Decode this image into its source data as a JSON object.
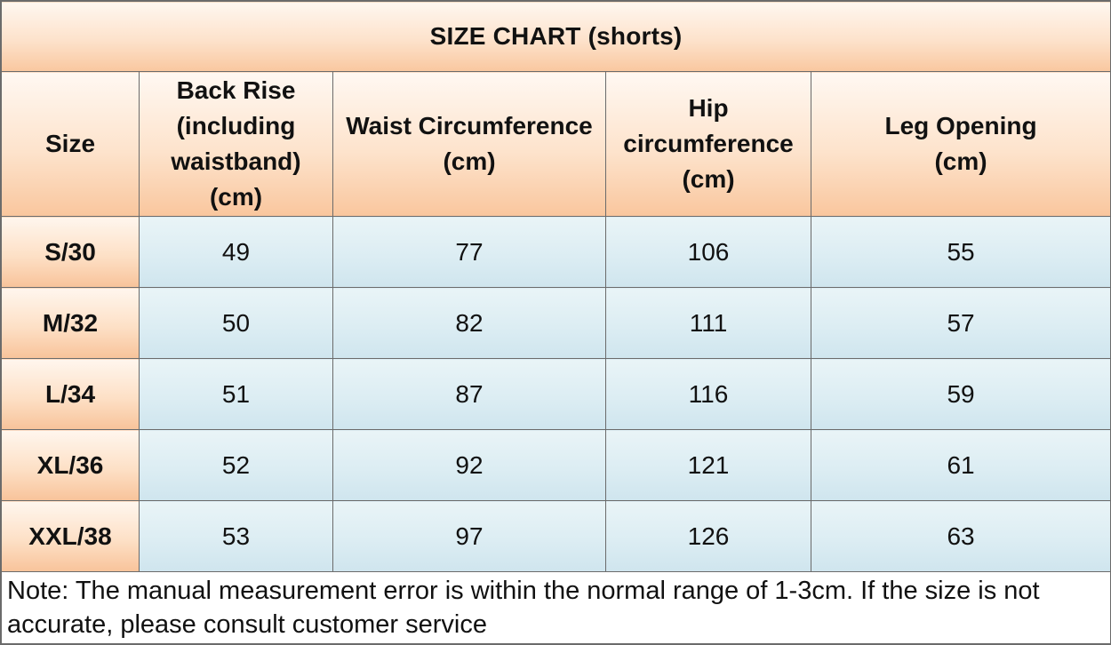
{
  "title": "SIZE CHART  (shorts)",
  "columns": [
    {
      "lines": [
        "Size"
      ]
    },
    {
      "lines": [
        "Back Rise",
        "(including",
        "waistband)",
        "(cm)"
      ]
    },
    {
      "lines": [
        "Waist Circumference",
        "(cm)"
      ]
    },
    {
      "lines": [
        "Hip",
        "circumference",
        "(cm)"
      ]
    },
    {
      "lines": [
        "Leg Opening",
        "(cm)"
      ]
    }
  ],
  "rows": [
    {
      "size": "S/30",
      "back_rise": "49",
      "waist": "77",
      "hip": "106",
      "leg_opening": "55"
    },
    {
      "size": "M/32",
      "back_rise": "50",
      "waist": "82",
      "hip": "111",
      "leg_opening": "57"
    },
    {
      "size": "L/34",
      "back_rise": "51",
      "waist": "87",
      "hip": "116",
      "leg_opening": "59"
    },
    {
      "size": "XL/36",
      "back_rise": "52",
      "waist": "92",
      "hip": "121",
      "leg_opening": "61"
    },
    {
      "size": "XXL/38",
      "back_rise": "53",
      "waist": "97",
      "hip": "126",
      "leg_opening": "63"
    }
  ],
  "note": "Note: The manual measurement error is within the normal range of 1-3cm. If the size is not accurate, please consult customer service",
  "colors": {
    "header_peach": "#fde2cb",
    "value_blue": "#dcedf3",
    "border": "#6b6b6b"
  }
}
